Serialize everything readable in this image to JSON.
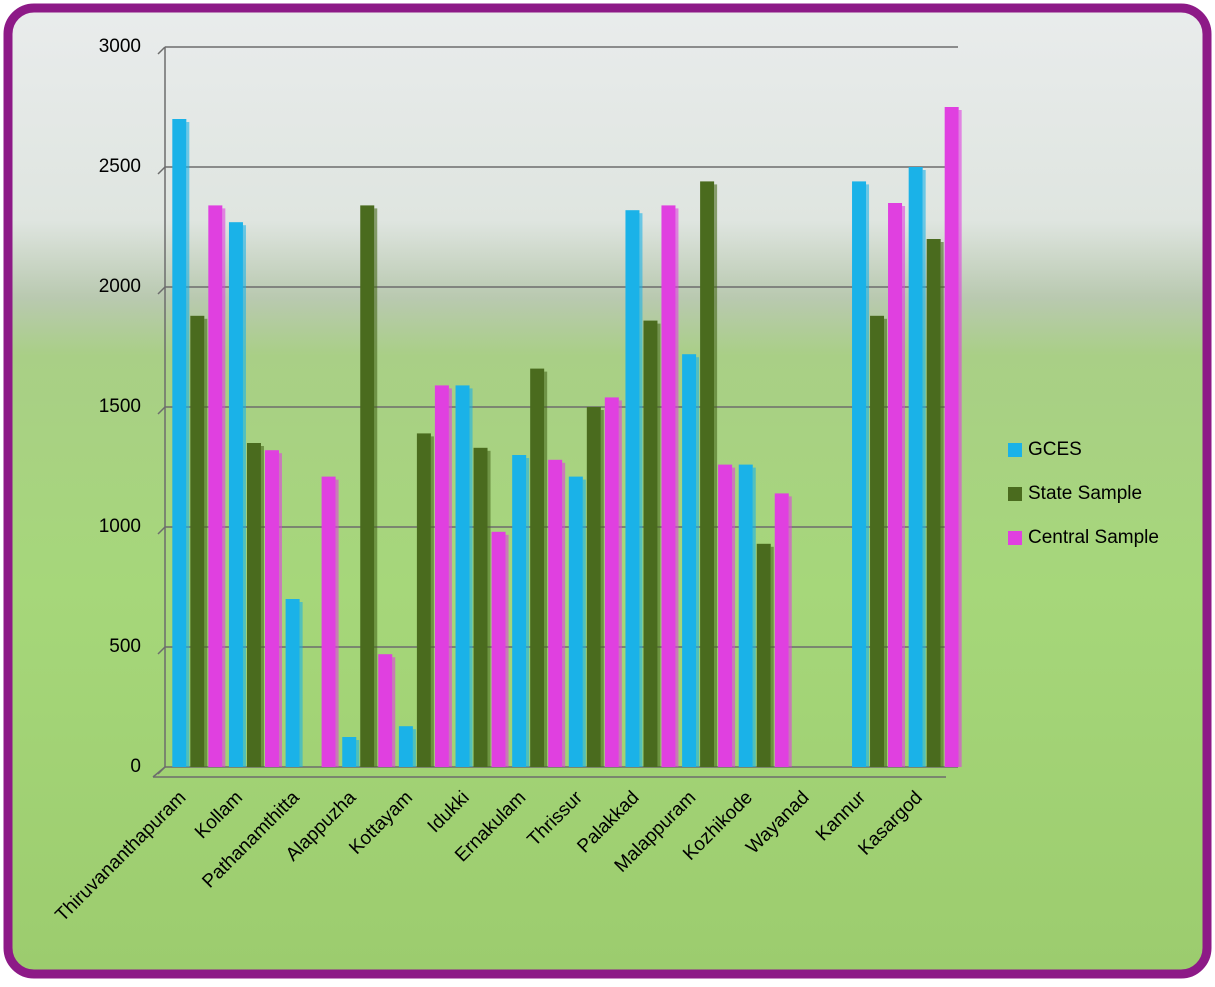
{
  "chart_data": {
    "type": "bar",
    "categories": [
      "Thiruvananthapuram",
      "Kollam",
      "Pathanamthitta",
      "Alappuzha",
      "Kottayam",
      "Idukki",
      "Ernakulam",
      "Thrissur",
      "Palakkad",
      "Malappuram",
      "Kozhikode",
      "Wayanad",
      "Kannur",
      "Kasargod"
    ],
    "series": [
      {
        "name": "GCES",
        "color": "#1ab2e8",
        "values": [
          2700,
          2270,
          700,
          125,
          170,
          1590,
          1300,
          1210,
          2320,
          1720,
          1260,
          null,
          2440,
          2500
        ]
      },
      {
        "name": "State Sample",
        "color": "#4a6b1e",
        "values": [
          1880,
          1350,
          null,
          2340,
          1390,
          1330,
          1660,
          1500,
          1860,
          2440,
          930,
          null,
          1880,
          2200
        ]
      },
      {
        "name": "Central Sample",
        "color": "#e040e0",
        "values": [
          2340,
          1320,
          1210,
          470,
          1590,
          980,
          1280,
          1540,
          2340,
          1260,
          1140,
          null,
          2350,
          2750
        ]
      }
    ],
    "ylim": [
      0,
      3000
    ],
    "yticks": [
      0,
      500,
      1000,
      1500,
      2000,
      2500,
      3000
    ],
    "grid": true,
    "legend": "right"
  }
}
